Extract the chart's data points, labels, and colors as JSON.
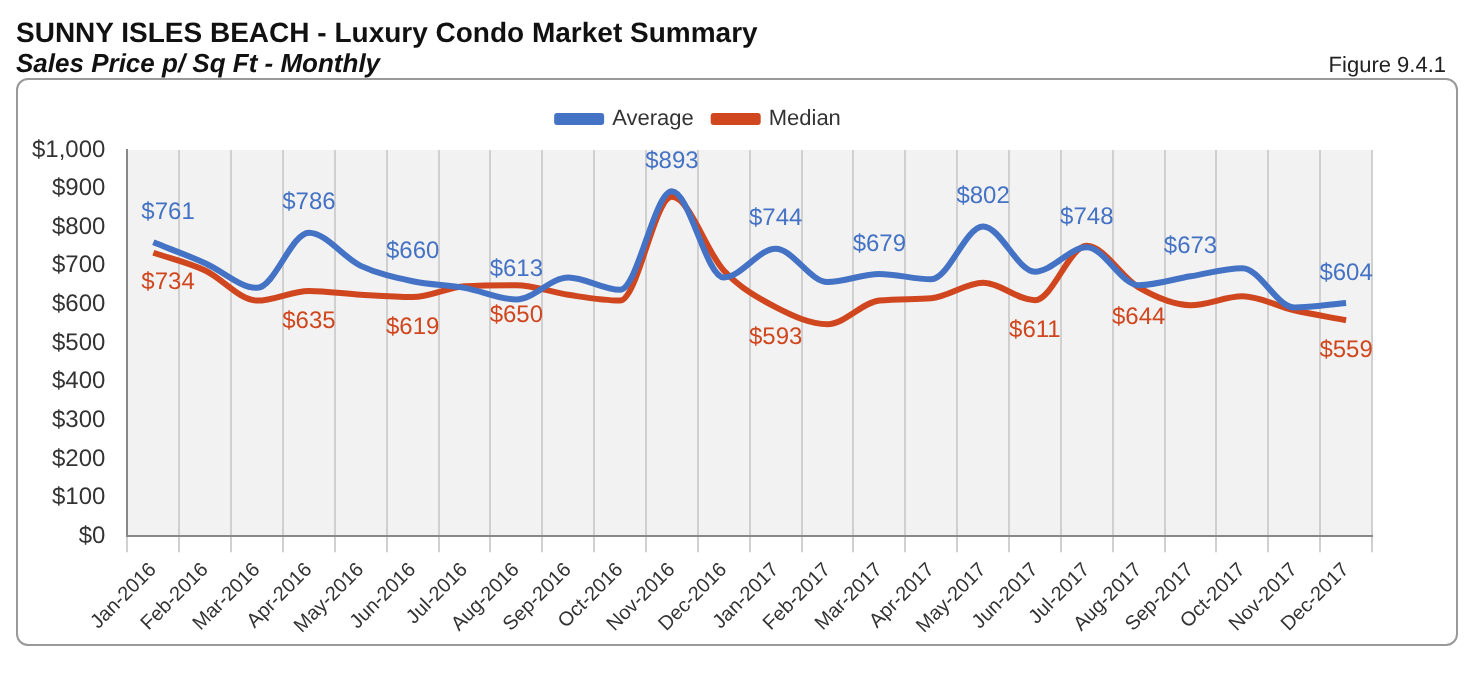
{
  "chart_data": {
    "type": "line",
    "title": "SUNNY ISLES BEACH - Luxury Condo Market Summary",
    "subtitle": "Sales Price  p/ Sq Ft - Monthly",
    "annotations": [
      "Figure 9.4.1"
    ],
    "categories": [
      "Jan-2016",
      "Feb-2016",
      "Mar-2016",
      "Apr-2016",
      "May-2016",
      "Jun-2016",
      "Jul-2016",
      "Aug-2016",
      "Sep-2016",
      "Oct-2016",
      "Nov-2016",
      "Dec-2016",
      "Jan-2017",
      "Feb-2017",
      "Mar-2017",
      "Apr-2017",
      "May-2017",
      "Jun-2017",
      "Jul-2017",
      "Aug-2017",
      "Sep-2017",
      "Oct-2017",
      "Nov-2017",
      "Dec-2017"
    ],
    "series": [
      {
        "name": "Average",
        "color": "#4472c4",
        "values": [
          761,
          707,
          643,
          786,
          700,
          660,
          643,
          613,
          670,
          638,
          893,
          670,
          744,
          658,
          679,
          665,
          802,
          685,
          748,
          650,
          673,
          694,
          592,
          604
        ],
        "value_labels": [
          "$761",
          null,
          null,
          "$786",
          null,
          "$660",
          null,
          "$613",
          null,
          null,
          "$893",
          null,
          "$744",
          null,
          "$679",
          null,
          "$802",
          null,
          "$748",
          null,
          "$673",
          null,
          null,
          "$604"
        ]
      },
      {
        "name": "Median",
        "color": "#d0461e",
        "values": [
          734,
          688,
          610,
          635,
          625,
          619,
          647,
          650,
          625,
          610,
          879,
          688,
          593,
          549,
          610,
          616,
          656,
          611,
          752,
          644,
          598,
          621,
          585,
          559
        ],
        "value_labels": [
          "$734",
          null,
          null,
          "$635",
          null,
          "$619",
          null,
          "$650",
          null,
          null,
          null,
          null,
          "$593",
          null,
          null,
          null,
          null,
          "$611",
          null,
          "$644",
          null,
          null,
          null,
          "$559"
        ]
      }
    ],
    "ylim": [
      0,
      1000
    ],
    "yticks": [
      {
        "value": 0,
        "label": "$0"
      },
      {
        "value": 100,
        "label": "$100"
      },
      {
        "value": 200,
        "label": "$200"
      },
      {
        "value": 300,
        "label": "$300"
      },
      {
        "value": 400,
        "label": "$400"
      },
      {
        "value": 500,
        "label": "$500"
      },
      {
        "value": 600,
        "label": "$600"
      },
      {
        "value": 700,
        "label": "$700"
      },
      {
        "value": 800,
        "label": "$800"
      },
      {
        "value": 900,
        "label": "$900"
      },
      {
        "value": 1000,
        "label": "$1,000"
      }
    ],
    "grid": "x",
    "legend": "top",
    "marker": "none",
    "line_style": "solid"
  }
}
